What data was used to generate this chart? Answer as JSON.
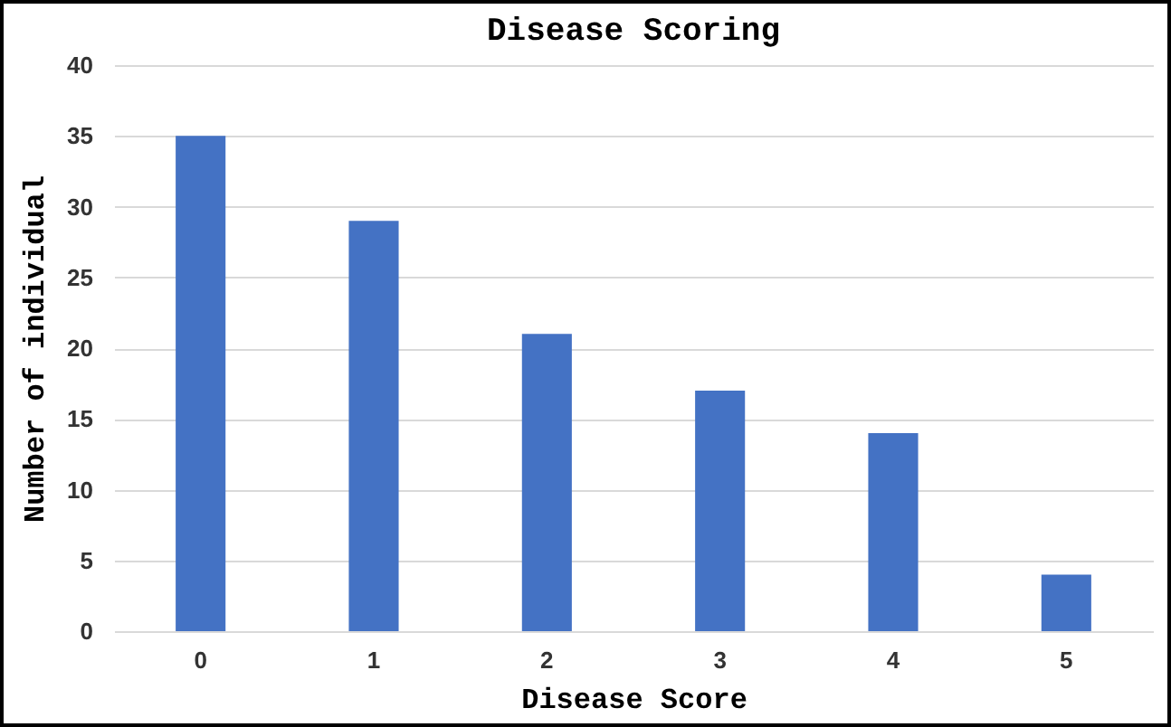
{
  "chart_data": {
    "type": "bar",
    "title": "Disease Scoring",
    "xlabel": "Disease Score",
    "ylabel": "Number of individual",
    "categories": [
      "0",
      "1",
      "2",
      "3",
      "4",
      "5"
    ],
    "values": [
      35,
      29,
      21,
      17,
      14,
      4
    ],
    "color": "#4472c4",
    "ylim": [
      0,
      40
    ],
    "yticks": [
      0,
      5,
      10,
      15,
      20,
      25,
      30,
      35,
      40
    ],
    "grid": "y"
  }
}
